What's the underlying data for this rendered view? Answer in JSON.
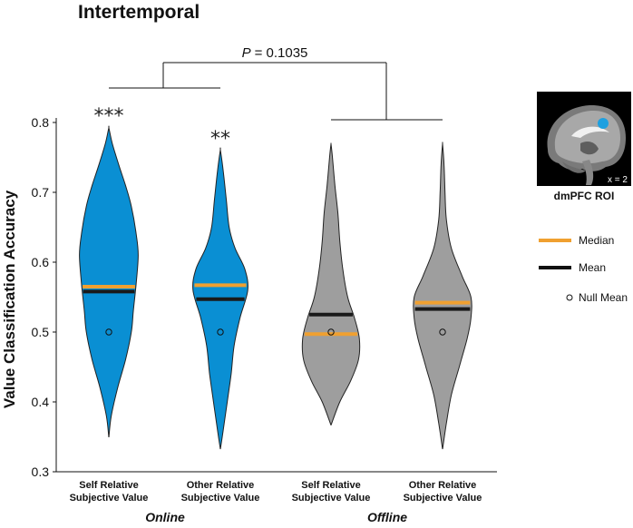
{
  "chart_data": {
    "type": "violin",
    "title": "Intertemporal",
    "ylabel": "Value Classification Accuracy",
    "xlabel": "",
    "ylim": [
      0.3,
      0.8
    ],
    "yticks": [
      "0.3",
      "0.4",
      "0.5",
      "0.6",
      "0.7",
      "0.8"
    ],
    "categories": [
      [
        "Self Relative",
        "Subjective Value"
      ],
      [
        "Other Relative",
        "Subjective Value"
      ],
      [
        "Self Relative",
        "Subjective Value"
      ],
      [
        "Other Relative",
        "Subjective Value"
      ]
    ],
    "groups": [
      "Online",
      "Offline"
    ],
    "series": [
      {
        "group": "Online",
        "color": "#0a8fd3",
        "median": 0.565,
        "mean": 0.558,
        "null_mean": 0.5,
        "min": 0.35,
        "max": 0.792,
        "significance": "***",
        "density": [
          [
            0.35,
            0.002
          ],
          [
            0.38,
            0.05
          ],
          [
            0.42,
            0.18
          ],
          [
            0.46,
            0.34
          ],
          [
            0.5,
            0.46
          ],
          [
            0.53,
            0.5
          ],
          [
            0.57,
            0.56
          ],
          [
            0.61,
            0.6
          ],
          [
            0.64,
            0.56
          ],
          [
            0.68,
            0.46
          ],
          [
            0.71,
            0.34
          ],
          [
            0.74,
            0.2
          ],
          [
            0.77,
            0.07
          ],
          [
            0.792,
            0.002
          ]
        ]
      },
      {
        "group": "Online",
        "color": "#0a8fd3",
        "median": 0.567,
        "mean": 0.547,
        "null_mean": 0.5,
        "min": 0.333,
        "max": 0.76,
        "significance": "**",
        "density": [
          [
            0.333,
            0.002
          ],
          [
            0.36,
            0.06
          ],
          [
            0.4,
            0.14
          ],
          [
            0.44,
            0.22
          ],
          [
            0.48,
            0.28
          ],
          [
            0.52,
            0.4
          ],
          [
            0.56,
            0.56
          ],
          [
            0.59,
            0.5
          ],
          [
            0.62,
            0.3
          ],
          [
            0.65,
            0.18
          ],
          [
            0.69,
            0.12
          ],
          [
            0.73,
            0.06
          ],
          [
            0.76,
            0.002
          ]
        ]
      },
      {
        "group": "Offline",
        "color": "#9e9e9e",
        "median": 0.497,
        "mean": 0.525,
        "null_mean": 0.5,
        "min": 0.367,
        "max": 0.768,
        "significance": "",
        "density": [
          [
            0.367,
            0.002
          ],
          [
            0.4,
            0.18
          ],
          [
            0.43,
            0.4
          ],
          [
            0.46,
            0.56
          ],
          [
            0.49,
            0.58
          ],
          [
            0.52,
            0.48
          ],
          [
            0.55,
            0.34
          ],
          [
            0.59,
            0.24
          ],
          [
            0.63,
            0.18
          ],
          [
            0.67,
            0.14
          ],
          [
            0.71,
            0.08
          ],
          [
            0.75,
            0.03
          ],
          [
            0.768,
            0.002
          ]
        ]
      },
      {
        "group": "Offline",
        "color": "#9e9e9e",
        "median": 0.542,
        "mean": 0.533,
        "null_mean": 0.5,
        "min": 0.333,
        "max": 0.768,
        "significance": "",
        "density": [
          [
            0.333,
            0.002
          ],
          [
            0.37,
            0.08
          ],
          [
            0.41,
            0.18
          ],
          [
            0.45,
            0.34
          ],
          [
            0.49,
            0.5
          ],
          [
            0.52,
            0.58
          ],
          [
            0.55,
            0.58
          ],
          [
            0.58,
            0.4
          ],
          [
            0.62,
            0.18
          ],
          [
            0.66,
            0.08
          ],
          [
            0.7,
            0.05
          ],
          [
            0.74,
            0.03
          ],
          [
            0.768,
            0.002
          ]
        ]
      }
    ],
    "comparison": {
      "p_label": "P",
      "p_value": "= 0.1035"
    },
    "legend": {
      "placement": "right",
      "items": [
        {
          "label": "Median",
          "color": "#f0a030",
          "kind": "line"
        },
        {
          "label": "Mean",
          "color": "#111111",
          "kind": "line"
        },
        {
          "label": "Null Mean",
          "color": "#111111",
          "kind": "circle"
        }
      ]
    },
    "median_color": "#f0a030",
    "mean_color": "#1a1a1a"
  },
  "inset": {
    "caption": "dmPFC ROI",
    "coord": "x = 2",
    "roi_color": "#1ea0e0"
  }
}
